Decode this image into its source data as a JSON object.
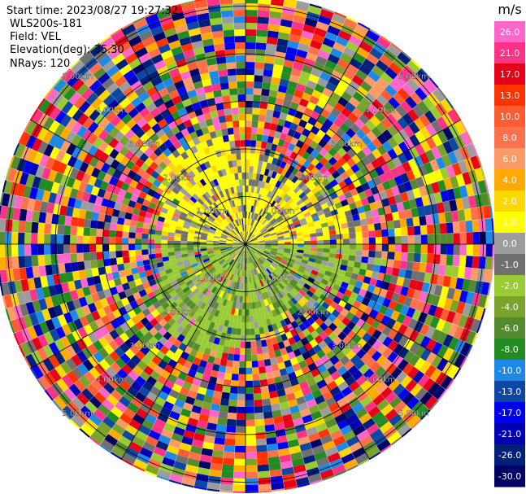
{
  "header": {
    "start_time": "Start time: 2023/08/27 19:27:32",
    "instrument": "WLS200s-181",
    "field": "Field: VEL",
    "elevation": "Elevation(deg): 35.30",
    "nrays": "NRays: 120"
  },
  "chart_data": {
    "type": "heatmap",
    "projection": "polar-ppi",
    "field": "VEL",
    "instrument": "WLS200s-181",
    "start_time": "2023/08/27 19:27:32",
    "elevation_deg": 35.3,
    "n_rays": 120,
    "range_rings_km": [
      {
        "label": "1.00km",
        "value": 1.0
      },
      {
        "label": "2.00km",
        "value": 2.0
      },
      {
        "label": "3.00km",
        "value": 3.0
      },
      {
        "label": "4.00km",
        "value": 4.0
      },
      {
        "label": "5.00km",
        "value": 5.0
      }
    ],
    "max_range_km": 5.0,
    "colorbar": {
      "unit": "m/s",
      "ticks": [
        "26.0",
        "21.0",
        "17.0",
        "13.0",
        "10.0",
        "8.0",
        "6.0",
        "4.0",
        "2.0",
        "1.0",
        "0.0",
        "-1.0",
        "-2.0",
        "-4.0",
        "-6.0",
        "-8.0",
        "-10.0",
        "-13.0",
        "-17.0",
        "-21.0",
        "-26.0",
        "-30.0"
      ],
      "bins": [
        {
          "low": 26.0,
          "color": "#ff66cc"
        },
        {
          "low": 21.0,
          "color": "#ff3385"
        },
        {
          "low": 17.0,
          "color": "#e6001a"
        },
        {
          "low": 13.0,
          "color": "#ff3300"
        },
        {
          "low": 10.0,
          "color": "#ff5c33"
        },
        {
          "low": 8.0,
          "color": "#ff704d"
        },
        {
          "low": 6.0,
          "color": "#ff9966"
        },
        {
          "low": 4.0,
          "color": "#ffaa00"
        },
        {
          "low": 2.0,
          "color": "#ffd700"
        },
        {
          "low": 1.0,
          "color": "#ffff00"
        },
        {
          "low": 0.0,
          "color": "#9c9c9c"
        },
        {
          "low": -1.0,
          "color": "#707070"
        },
        {
          "low": -2.0,
          "color": "#99cc33"
        },
        {
          "low": -4.0,
          "color": "#7aa32b"
        },
        {
          "low": -6.0,
          "color": "#558b2f"
        },
        {
          "low": -8.0,
          "color": "#228b22"
        },
        {
          "low": -10.0,
          "color": "#1e88e5"
        },
        {
          "low": -13.0,
          "color": "#0d47a1"
        },
        {
          "low": -17.0,
          "color": "#0000ee"
        },
        {
          "low": -21.0,
          "color": "#0000b3"
        },
        {
          "low": -26.0,
          "color": "#001f7a"
        },
        {
          "low": -30.0,
          "color": "#000066"
        }
      ]
    },
    "inner_regions": [
      {
        "description_code": "north",
        "dominant_values_ms": [
          1.0,
          0.0
        ]
      },
      {
        "description_code": "south",
        "dominant_values_ms": [
          -2.0,
          -4.0
        ]
      }
    ]
  }
}
